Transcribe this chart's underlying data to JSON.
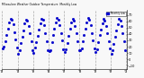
{
  "title": "Milwaukee Weather Outdoor Temperature  Monthly Low",
  "bg_color": "#f8f8f8",
  "dot_color": "#0000cc",
  "dot_size": 1.5,
  "legend_color": "#0000cc",
  "y_ticks": [
    -10,
    0,
    10,
    20,
    30,
    40,
    50,
    60,
    70
  ],
  "ylim": [
    -15,
    78
  ],
  "num_years": 8,
  "months_per_year": 12,
  "monthly_lows": [
    17,
    20,
    29,
    38,
    48,
    58,
    64,
    63,
    55,
    43,
    31,
    19,
    8,
    14,
    26,
    36,
    46,
    57,
    63,
    62,
    53,
    41,
    28,
    14,
    10,
    18,
    27,
    37,
    47,
    57,
    64,
    63,
    54,
    42,
    29,
    15,
    13,
    15,
    27,
    38,
    49,
    58,
    65,
    63,
    54,
    42,
    30,
    16,
    12,
    16,
    26,
    37,
    48,
    58,
    64,
    62,
    53,
    41,
    29,
    15,
    14,
    17,
    28,
    38,
    48,
    58,
    65,
    63,
    54,
    42,
    30,
    17,
    12,
    16,
    27,
    38,
    47,
    57,
    64,
    62,
    53,
    42,
    29,
    17,
    9,
    14,
    24,
    36,
    46,
    56,
    64,
    62,
    53,
    41,
    28,
    15
  ],
  "x_tick_labels": [
    "'93",
    "'94",
    "'95",
    "'96",
    "'97",
    "'98",
    "'99",
    "'00",
    "'01"
  ],
  "grid_color": "#888888",
  "grid_style": "--"
}
